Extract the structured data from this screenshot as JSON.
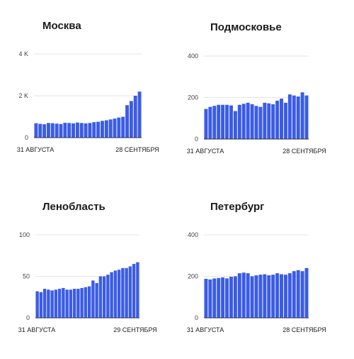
{
  "chart_data": [
    {
      "type": "bar",
      "title": "Москва",
      "color": "#3b5ce6",
      "ylim": [
        0,
        4000
      ],
      "yticks": [
        0,
        2000,
        4000
      ],
      "ytick_labels": [
        "0",
        "2 K",
        "4 K"
      ],
      "x_labels": [
        "31 АВГУСТА",
        "28 СЕНТЯБРЯ"
      ],
      "values": [
        690,
        660,
        640,
        700,
        690,
        670,
        650,
        710,
        700,
        680,
        720,
        700,
        680,
        700,
        740,
        760,
        800,
        830,
        870,
        910,
        960,
        1000,
        1550,
        1750,
        2000,
        2200
      ]
    },
    {
      "type": "bar",
      "title": "Подмосковье",
      "color": "#3b5ce6",
      "ylim": [
        0,
        400
      ],
      "yticks": [
        0,
        200,
        400
      ],
      "ytick_labels": [
        "0",
        "200",
        "400"
      ],
      "x_labels": [
        "31 АВГУСТА",
        "28 СЕНТЯБРЯ"
      ],
      "values": [
        145,
        155,
        160,
        165,
        165,
        165,
        162,
        135,
        165,
        170,
        175,
        168,
        160,
        155,
        175,
        172,
        168,
        185,
        195,
        175,
        215,
        210,
        205,
        225,
        210
      ]
    },
    {
      "type": "bar",
      "title": "Ленобласть",
      "color": "#3b5ce6",
      "ylim": [
        0,
        100
      ],
      "yticks": [
        0,
        50,
        100
      ],
      "ytick_labels": [
        "0",
        "50",
        "100"
      ],
      "x_labels": [
        "31 АВГУСТА",
        "29 СЕНТЯБРЯ"
      ],
      "values": [
        32,
        31,
        35,
        34,
        33,
        34,
        35,
        36,
        34,
        34,
        35,
        35,
        36,
        37,
        38,
        45,
        42,
        50,
        50,
        52,
        55,
        57,
        58,
        60,
        60,
        62,
        65,
        67
      ]
    },
    {
      "type": "bar",
      "title": "Петербург",
      "color": "#3b5ce6",
      "ylim": [
        0,
        400
      ],
      "yticks": [
        0,
        200,
        400
      ],
      "ytick_labels": [
        "0",
        "200",
        "400"
      ],
      "x_labels": [
        "31 АВГУСТА",
        "28 СЕНТЯБРЯ"
      ],
      "values": [
        188,
        185,
        190,
        192,
        195,
        190,
        198,
        200,
        215,
        218,
        215,
        200,
        205,
        208,
        210,
        205,
        208,
        215,
        210,
        208,
        215,
        225,
        230,
        225,
        240
      ]
    }
  ]
}
